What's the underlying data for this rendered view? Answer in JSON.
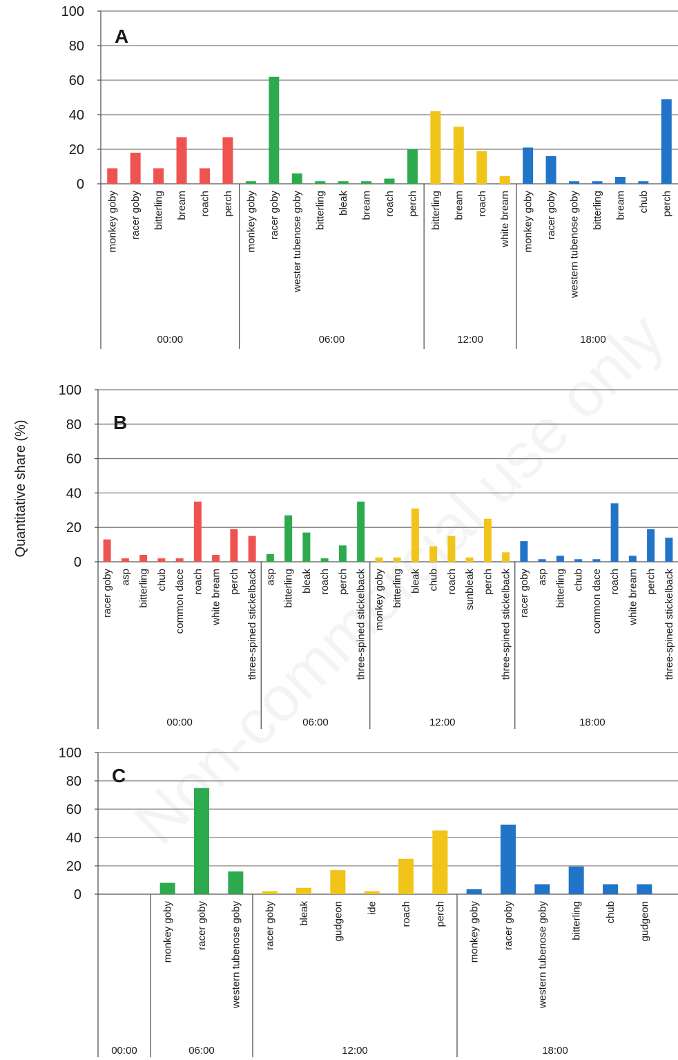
{
  "y_axis_label": "Quantitative share (%)",
  "watermark": "Non-commercial use only",
  "colors": {
    "00:00": "#ef5350",
    "06:00": "#2eaa4e",
    "12:00": "#f0c419",
    "18:00": "#2274c8"
  },
  "chart_data": [
    {
      "type": "bar",
      "panel": "A",
      "ylim": [
        0,
        100
      ],
      "yticks": [
        0,
        20,
        40,
        60,
        80,
        100
      ],
      "grid": true,
      "groups": [
        {
          "label": "00:00",
          "categories": [
            "monkey goby",
            "racer goby",
            "bitterling",
            "bream",
            "roach",
            "perch"
          ],
          "values": [
            9,
            18,
            9,
            27,
            9,
            27
          ]
        },
        {
          "label": "06:00",
          "categories": [
            "monkey goby",
            "racer goby",
            "wester tubenose goby",
            "bitterling",
            "bleak",
            "bream",
            "roach",
            "perch"
          ],
          "values": [
            1.5,
            62,
            6,
            1.5,
            1.5,
            1.5,
            3,
            20
          ]
        },
        {
          "label": "12:00",
          "categories": [
            "bitterling",
            "bream",
            "roach",
            "white bream"
          ],
          "values": [
            42,
            33,
            19,
            4.5
          ]
        },
        {
          "label": "18:00",
          "categories": [
            "monkey goby",
            "racer goby",
            "western tubenose goby",
            "bitterling",
            "bream",
            "chub",
            "perch"
          ],
          "values": [
            21,
            16,
            1.5,
            1.5,
            4,
            1.5,
            49
          ]
        }
      ]
    },
    {
      "type": "bar",
      "panel": "B",
      "ylim": [
        0,
        100
      ],
      "yticks": [
        0,
        20,
        40,
        60,
        80,
        100
      ],
      "grid": true,
      "groups": [
        {
          "label": "00:00",
          "categories": [
            "racer goby",
            "asp",
            "bitterling",
            "chub",
            "common dace",
            "roach",
            "white bream",
            "perch",
            "three-spined stickelback"
          ],
          "values": [
            13,
            2,
            4,
            2,
            2,
            35,
            4,
            19,
            15
          ]
        },
        {
          "label": "06:00",
          "categories": [
            "asp",
            "bitterling",
            "bleak",
            "roach",
            "perch",
            "three-spined stickelback"
          ],
          "values": [
            4.5,
            27,
            17,
            2,
            9.5,
            35
          ]
        },
        {
          "label": "12:00",
          "categories": [
            "monkey goby",
            "bitterling",
            "bleak",
            "chub",
            "roach",
            "sunbleak",
            "perch",
            "three-spined stickelback"
          ],
          "values": [
            2.5,
            2.5,
            31,
            9,
            15,
            2.5,
            25,
            5.5
          ]
        },
        {
          "label": "18:00",
          "categories": [
            "racer goby",
            "asp",
            "bitterling",
            "chub",
            "common dace",
            "roach",
            "white bream",
            "perch",
            "three-spined stickelback"
          ],
          "values": [
            12,
            1.5,
            3.5,
            1.5,
            1.5,
            34,
            3.5,
            19,
            14
          ]
        }
      ]
    },
    {
      "type": "bar",
      "panel": "C",
      "ylim": [
        0,
        100
      ],
      "yticks": [
        0,
        20,
        40,
        60,
        80,
        100
      ],
      "grid": true,
      "groups": [
        {
          "label": "00:00",
          "categories": [],
          "values": []
        },
        {
          "label": "06:00",
          "categories": [
            "monkey goby",
            "racer goby",
            "western tubenose goby"
          ],
          "values": [
            8,
            75,
            16
          ]
        },
        {
          "label": "12:00",
          "categories": [
            "racer goby",
            "bleak",
            "gudgeon",
            "ide",
            "roach",
            "perch"
          ],
          "values": [
            2,
            4.5,
            17,
            2,
            25,
            45
          ]
        },
        {
          "label": "18:00",
          "categories": [
            "monkey goby",
            "racer goby",
            "western tubenose goby",
            "bitterling",
            "chub",
            "gudgeon"
          ],
          "values": [
            3.5,
            49,
            7,
            19.5,
            7,
            7
          ]
        }
      ]
    }
  ]
}
